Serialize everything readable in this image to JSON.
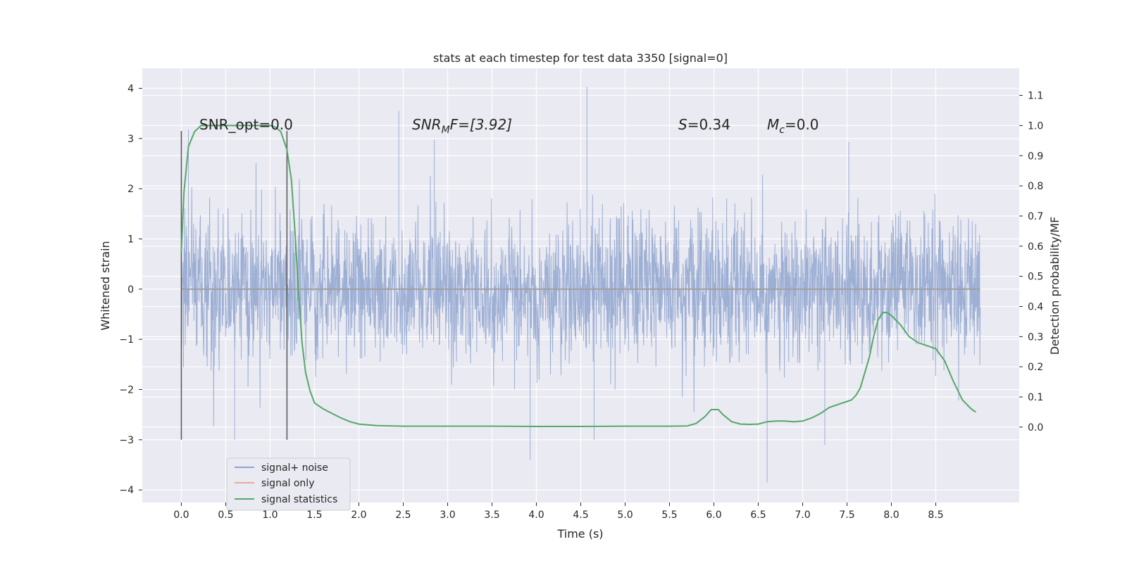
{
  "chart_data": {
    "type": "line",
    "title": "stats at each timestep for test data 3350 [signal=0]",
    "xlabel": "Time (s)",
    "ylabel": "Whitened strain",
    "y2label": "Detection probability/MF",
    "xlim": [
      -0.44,
      9.44
    ],
    "ylim": [
      -4.25,
      4.4
    ],
    "y2lim": [
      -0.25,
      1.19
    ],
    "xticks": [
      "0.0",
      "0.5",
      "1.0",
      "1.5",
      "2.0",
      "2.5",
      "3.0",
      "3.5",
      "4.0",
      "4.5",
      "5.0",
      "5.5",
      "6.0",
      "6.5",
      "7.0",
      "7.5",
      "8.0",
      "8.5"
    ],
    "yticks": [
      "4",
      "3",
      "2",
      "1",
      "0",
      "−1",
      "−2",
      "−3",
      "−4"
    ],
    "y2ticks": [
      "1.1",
      "1.0",
      "0.9",
      "0.8",
      "0.7",
      "0.6",
      "0.5",
      "0.4",
      "0.3",
      "0.2",
      "0.1",
      "0.0"
    ],
    "grid": true,
    "legend_position": "lower-left",
    "annotations": {
      "snr_opt": "SNR_opt=0.0",
      "snr_mf_label": "SNR",
      "snr_mf_sub": "M",
      "snr_mf_rest": "F=[3.92]",
      "s_label": "S",
      "s_rest": "=0.34",
      "mc_label": "M",
      "mc_sub": "c",
      "mc_rest": "=0.0"
    },
    "marker_lines_x": [
      0.0,
      1.19
    ],
    "series": [
      {
        "name": "signal+ noise",
        "color": "#8fa4cf",
        "description_hint": "dense whitened strain noise, roughly within ±1.4 with spikes up to 4.03 near 4.57 s and down to -3.85 near 6.6 s",
        "x_range": [
          0.0,
          9.0
        ],
        "spikes": [
          {
            "x": 0.08,
            "y": 3.18
          },
          {
            "x": 0.6,
            "y": -3.0
          },
          {
            "x": 2.45,
            "y": 3.55
          },
          {
            "x": 3.93,
            "y": -3.4
          },
          {
            "x": 4.57,
            "y": 4.03
          },
          {
            "x": 6.6,
            "y": -3.85
          },
          {
            "x": 7.52,
            "y": 2.93
          },
          {
            "x": 7.25,
            "y": -3.1
          },
          {
            "x": 2.85,
            "y": 2.98
          },
          {
            "x": 4.65,
            "y": -3.0
          }
        ]
      },
      {
        "name": "signal only",
        "color": "#dd8452",
        "values_constant": 0.0
      },
      {
        "name": "signal statistics",
        "color": "#55a868",
        "axis": "right",
        "x": [
          0.0,
          0.03,
          0.08,
          0.15,
          0.22,
          0.3,
          0.5,
          0.7,
          0.9,
          1.0,
          1.06,
          1.12,
          1.19,
          1.24,
          1.28,
          1.32,
          1.36,
          1.4,
          1.45,
          1.5,
          1.6,
          1.7,
          1.8,
          1.9,
          2.0,
          2.2,
          2.5,
          3.0,
          3.5,
          4.0,
          4.5,
          5.0,
          5.5,
          5.7,
          5.8,
          5.9,
          5.97,
          6.05,
          6.1,
          6.2,
          6.3,
          6.4,
          6.5,
          6.6,
          6.7,
          6.8,
          6.9,
          7.0,
          7.1,
          7.2,
          7.3,
          7.4,
          7.5,
          7.55,
          7.6,
          7.65,
          7.7,
          7.75,
          7.8,
          7.85,
          7.9,
          7.95,
          8.0,
          8.1,
          8.2,
          8.3,
          8.4,
          8.5,
          8.6,
          8.7,
          8.8,
          8.9,
          8.95
        ],
        "values": [
          0.58,
          0.78,
          0.93,
          0.98,
          1.0,
          1.0,
          1.0,
          1.0,
          1.0,
          1.0,
          0.995,
          0.98,
          0.92,
          0.82,
          0.65,
          0.45,
          0.28,
          0.18,
          0.12,
          0.08,
          0.06,
          0.045,
          0.03,
          0.018,
          0.01,
          0.005,
          0.003,
          0.003,
          0.003,
          0.002,
          0.002,
          0.003,
          0.003,
          0.004,
          0.012,
          0.035,
          0.058,
          0.058,
          0.042,
          0.018,
          0.01,
          0.009,
          0.01,
          0.018,
          0.02,
          0.02,
          0.018,
          0.02,
          0.03,
          0.045,
          0.065,
          0.075,
          0.085,
          0.09,
          0.105,
          0.13,
          0.18,
          0.23,
          0.3,
          0.355,
          0.38,
          0.38,
          0.37,
          0.34,
          0.3,
          0.28,
          0.27,
          0.26,
          0.22,
          0.15,
          0.09,
          0.06,
          0.05
        ]
      }
    ]
  }
}
